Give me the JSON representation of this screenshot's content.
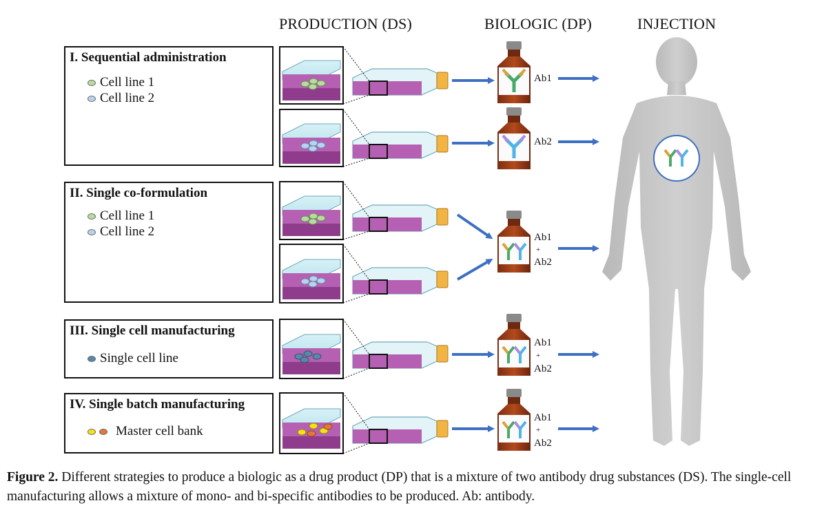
{
  "headers": {
    "production": "PRODUCTION (DS)",
    "biologic": "BIOLOGIC (DP)",
    "injection": "INJECTION"
  },
  "panels": [
    {
      "title": "I. Sequential administration",
      "legend": [
        "Cell line 1",
        "Cell line 2"
      ]
    },
    {
      "title": "II. Single co-formulation",
      "legend": [
        "Cell line 1",
        "Cell line 2"
      ]
    },
    {
      "title": "III. Single cell manufacturing",
      "legend": [
        "Single cell line"
      ]
    },
    {
      "title": "IV. Single batch manufacturing",
      "legend": [
        "Master cell bank"
      ]
    }
  ],
  "vial_labels": {
    "ab1": "Ab1",
    "ab2": "Ab2",
    "plus": "+"
  },
  "colors": {
    "cell_line_1": "#b8dba0",
    "cell_line_2": "#b9d3ee",
    "single_cell": "#5a88a8",
    "master_yellow": "#f3e21a",
    "master_orange": "#e3783a",
    "arrow": "#3d6fc2",
    "media": "#b560b2",
    "body": "#c4c4c4"
  },
  "caption": {
    "label": "Figure 2.",
    "text": " Different strategies to produce a biologic as a drug product (DP) that is a mixture of two antibody drug substances (DS). The single-cell manufacturing allows a mixture of mono- and bi-specific antibodies to be produced. Ab: antibody."
  }
}
